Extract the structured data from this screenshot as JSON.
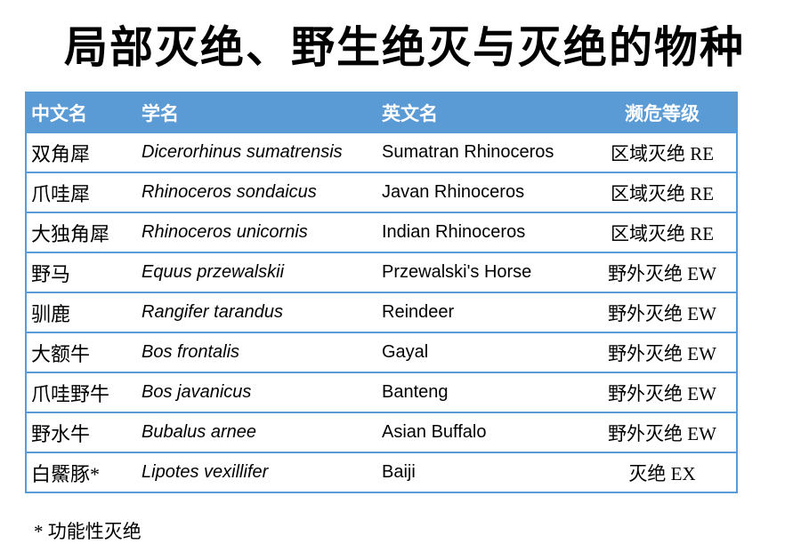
{
  "title": "局部灭绝、野生绝灭与灭绝的物种",
  "colors": {
    "header_bg": "#5b9bd5",
    "border": "#5b9bd5",
    "header_text": "#ffffff",
    "body_text": "#000000"
  },
  "table": {
    "headers": [
      "中文名",
      "学名",
      "英文名",
      "濒危等级"
    ],
    "rows": [
      {
        "cn": "双角犀",
        "sci": "Dicerorhinus sumatrensis",
        "en": "Sumatran Rhinoceros",
        "level": "区域灭绝 RE"
      },
      {
        "cn": "爪哇犀",
        "sci": "Rhinoceros sondaicus",
        "en": "Javan Rhinoceros",
        "level": "区域灭绝 RE"
      },
      {
        "cn": "大独角犀",
        "sci": "Rhinoceros unicornis",
        "en": "Indian Rhinoceros",
        "level": "区域灭绝 RE"
      },
      {
        "cn": "野马",
        "sci": "Equus przewalskii",
        "en": "Przewalski's Horse",
        "level": "野外灭绝 EW"
      },
      {
        "cn": "驯鹿",
        "sci": "Rangifer tarandus",
        "en": "Reindeer",
        "level": "野外灭绝 EW"
      },
      {
        "cn": "大额牛",
        "sci": "Bos frontalis",
        "en": "Gayal",
        "level": "野外灭绝 EW"
      },
      {
        "cn": "爪哇野牛",
        "sci": "Bos javanicus",
        "en": "Banteng",
        "level": "野外灭绝 EW"
      },
      {
        "cn": "野水牛",
        "sci": "Bubalus arnee",
        "en": "Asian Buffalo",
        "level": "野外灭绝 EW"
      },
      {
        "cn": "白鱀豚*",
        "sci": "Lipotes vexillifer",
        "en": "Baiji",
        "level": "灭绝 EX"
      }
    ]
  },
  "footnote": "* 功能性灭绝"
}
